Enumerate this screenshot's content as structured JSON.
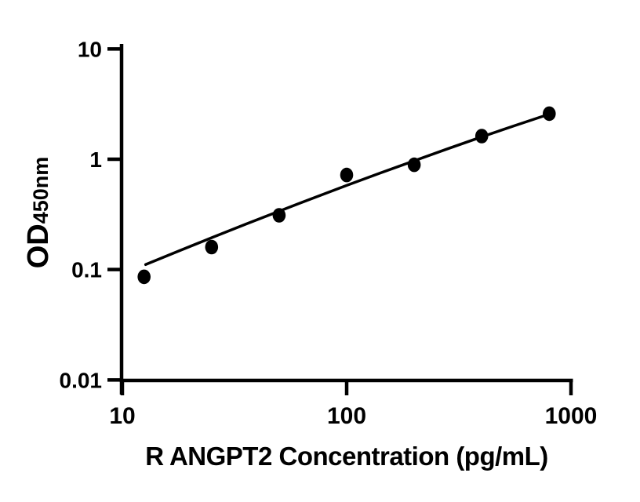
{
  "figure": {
    "background_color": "#ffffff",
    "ink_color": "#000000"
  },
  "chart_data": {
    "type": "scatter",
    "title": "",
    "xlabel": "R ANGPT2 Concentration (pg/mL)",
    "ylabel": "OD450nm",
    "ylabel_main": "OD",
    "ylabel_sub": "450nm",
    "x_scale": "log10",
    "y_scale": "log10",
    "xlim": [
      10,
      1000
    ],
    "ylim": [
      0.01,
      10
    ],
    "grid": false,
    "legend": "none",
    "x_ticks": [
      {
        "value": 10,
        "label": "10"
      },
      {
        "value": 100,
        "label": "100"
      },
      {
        "value": 1000,
        "label": "1000"
      }
    ],
    "y_ticks": [
      {
        "value": 10,
        "label": "10"
      },
      {
        "value": 1,
        "label": "1"
      },
      {
        "value": 0.1,
        "label": "0.1"
      },
      {
        "value": 0.01,
        "label": "0.01"
      }
    ],
    "series": [
      {
        "name": "standard-data-points",
        "type": "scatter",
        "marker": "filled-circle",
        "color": "#000000",
        "x": [
          12.5,
          25,
          50,
          100,
          200,
          400,
          800
        ],
        "y": [
          0.086,
          0.16,
          0.31,
          0.72,
          0.89,
          1.62,
          2.59
        ]
      },
      {
        "name": "fit-curve",
        "type": "line",
        "color": "#000000",
        "x": [
          12.7,
          17.8,
          25.1,
          35.5,
          50.1,
          70.8,
          100,
          141,
          200,
          282,
          398,
          562,
          800
        ],
        "y": [
          0.111,
          0.147,
          0.195,
          0.258,
          0.339,
          0.444,
          0.579,
          0.75,
          0.968,
          1.243,
          1.588,
          2.018,
          2.564
        ]
      }
    ]
  }
}
